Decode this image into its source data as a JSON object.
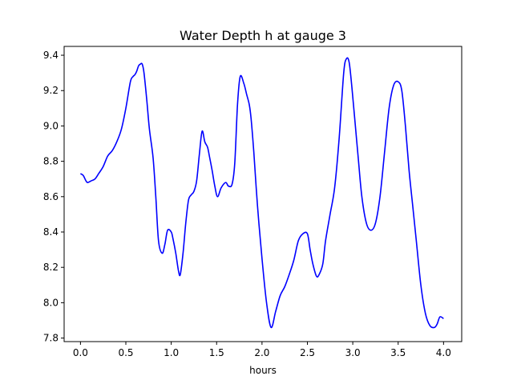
{
  "chart_data": {
    "type": "line",
    "title": "Water Depth h at gauge 3",
    "xlabel": "hours",
    "ylabel": "",
    "xlim": [
      -0.18,
      4.2
    ],
    "ylim": [
      7.78,
      9.45
    ],
    "xticks": [
      0.0,
      0.5,
      1.0,
      1.5,
      2.0,
      2.5,
      3.0,
      3.5,
      4.0
    ],
    "xtick_labels": [
      "0.0",
      "0.5",
      "1.0",
      "1.5",
      "2.0",
      "2.5",
      "3.0",
      "3.5",
      "4.0"
    ],
    "yticks": [
      7.8,
      8.0,
      8.2,
      8.4,
      8.6,
      8.8,
      9.0,
      9.2,
      9.4
    ],
    "ytick_labels": [
      "7.8",
      "8.0",
      "8.2",
      "8.4",
      "8.6",
      "8.8",
      "9.0",
      "9.2",
      "9.4"
    ],
    "grid": false,
    "series": [
      {
        "name": "",
        "color": "#0000ff",
        "x": [
          0.0,
          0.03,
          0.06,
          0.08,
          0.12,
          0.16,
          0.2,
          0.25,
          0.3,
          0.35,
          0.4,
          0.45,
          0.5,
          0.55,
          0.58,
          0.6,
          0.62,
          0.64,
          0.66,
          0.68,
          0.7,
          0.73,
          0.76,
          0.8,
          0.83,
          0.86,
          0.9,
          0.93,
          0.96,
          1.0,
          1.02,
          1.05,
          1.08,
          1.1,
          1.13,
          1.16,
          1.19,
          1.22,
          1.25,
          1.28,
          1.31,
          1.34,
          1.37,
          1.4,
          1.42,
          1.45,
          1.48,
          1.51,
          1.55,
          1.6,
          1.63,
          1.67,
          1.7,
          1.73,
          1.76,
          1.8,
          1.83,
          1.86,
          1.88,
          1.91,
          1.95,
          2.0,
          2.05,
          2.1,
          2.15,
          2.2,
          2.25,
          2.3,
          2.35,
          2.4,
          2.45,
          2.5,
          2.53,
          2.56,
          2.6,
          2.63,
          2.67,
          2.7,
          2.75,
          2.8,
          2.85,
          2.9,
          2.93,
          2.96,
          2.99,
          3.02,
          3.06,
          3.1,
          3.15,
          3.2,
          3.25,
          3.3,
          3.35,
          3.4,
          3.45,
          3.5,
          3.54,
          3.58,
          3.62,
          3.66,
          3.7,
          3.75,
          3.8,
          3.85,
          3.9,
          3.93,
          3.96,
          4.0
        ],
        "y": [
          8.73,
          8.72,
          8.69,
          8.68,
          8.69,
          8.7,
          8.73,
          8.77,
          8.83,
          8.86,
          8.91,
          8.98,
          9.1,
          9.25,
          9.28,
          9.29,
          9.31,
          9.34,
          9.35,
          9.35,
          9.3,
          9.15,
          8.98,
          8.82,
          8.6,
          8.35,
          8.28,
          8.33,
          8.41,
          8.4,
          8.36,
          8.28,
          8.18,
          8.16,
          8.28,
          8.45,
          8.58,
          8.61,
          8.63,
          8.69,
          8.84,
          8.97,
          8.91,
          8.88,
          8.83,
          8.75,
          8.66,
          8.6,
          8.65,
          8.68,
          8.66,
          8.67,
          8.79,
          9.12,
          9.28,
          9.24,
          9.18,
          9.12,
          9.04,
          8.85,
          8.55,
          8.25,
          8.0,
          7.86,
          7.95,
          8.04,
          8.09,
          8.16,
          8.24,
          8.35,
          8.39,
          8.39,
          8.3,
          8.22,
          8.15,
          8.16,
          8.22,
          8.35,
          8.5,
          8.65,
          8.93,
          9.3,
          9.38,
          9.36,
          9.22,
          9.05,
          8.82,
          8.6,
          8.45,
          8.41,
          8.45,
          8.6,
          8.85,
          9.1,
          9.23,
          9.25,
          9.2,
          9.0,
          8.75,
          8.55,
          8.35,
          8.1,
          7.94,
          7.87,
          7.86,
          7.88,
          7.92,
          7.91
        ]
      }
    ]
  }
}
